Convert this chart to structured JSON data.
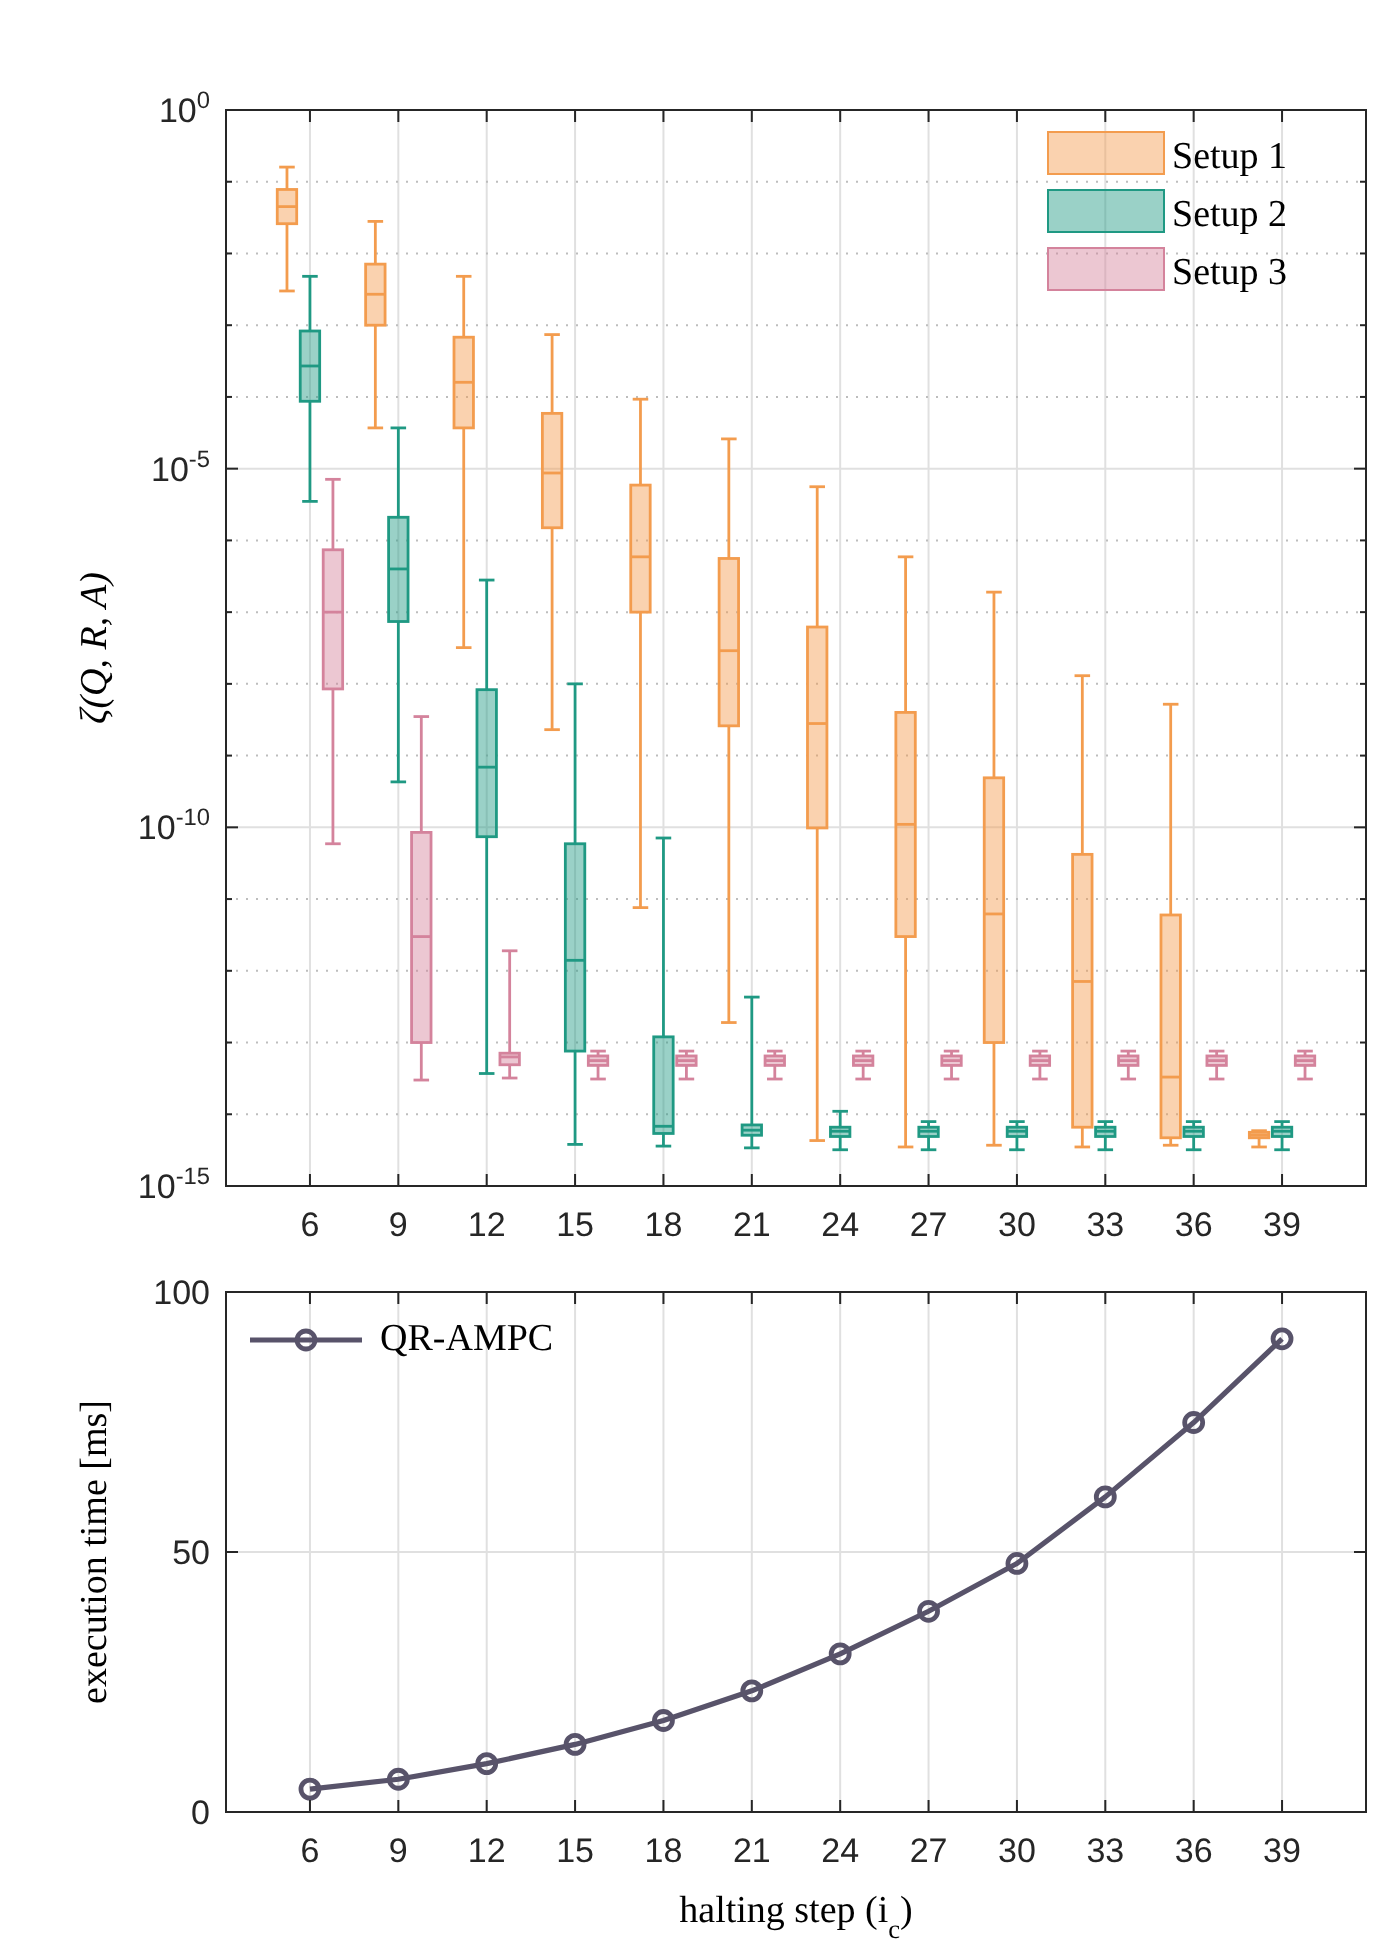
{
  "chart_data": [
    {
      "type": "box",
      "categories": [
        "6",
        "9",
        "12",
        "15",
        "18",
        "21",
        "24",
        "27",
        "30",
        "33",
        "36",
        "39"
      ],
      "ylabel": "ζ(Q, R, A)",
      "log": "y",
      "ylim": [
        1e-15,
        1
      ],
      "yticks": [
        {
          "value": 1,
          "label": "10$^{0}$"
        },
        {
          "value": 0.1,
          "label": null
        },
        {
          "value": 0.01,
          "label": null
        },
        {
          "value": 0.001,
          "label": null
        },
        {
          "value": 0.0001,
          "label": null
        },
        {
          "value": 1e-05,
          "label": "10$^{-5}$"
        },
        {
          "value": 1e-06,
          "label": null
        },
        {
          "value": 1e-07,
          "label": null
        },
        {
          "value": 1e-08,
          "label": null
        },
        {
          "value": 1e-09,
          "label": null
        },
        {
          "value": 1e-10,
          "label": "10$^{-10}$"
        },
        {
          "value": 1e-11,
          "label": null
        },
        {
          "value": 1e-12,
          "label": null
        },
        {
          "value": 1e-13,
          "label": null
        },
        {
          "value": 1e-14,
          "label": null
        },
        {
          "value": 1e-15,
          "label": "10$^{-15}$"
        }
      ],
      "grid": true,
      "legend": "top right",
      "series": [
        {
          "name": "Setup 1",
          "color": "#f39c4e",
          "boxes": [
            {
              "low": 0.003,
              "q1": 0.026,
              "median": 0.045,
              "q3": 0.078,
              "high": 0.16
            },
            {
              "low": 3.7e-05,
              "q1": 0.001,
              "median": 0.0027,
              "q3": 0.0071,
              "high": 0.028
            },
            {
              "low": 3.2e-08,
              "q1": 3.7e-05,
              "median": 0.00016,
              "q3": 0.00068,
              "high": 0.0048
            },
            {
              "low": 2.3e-09,
              "q1": 1.5e-06,
              "median": 8.7e-06,
              "q3": 5.9e-05,
              "high": 0.00074
            },
            {
              "low": 7.6e-12,
              "q1": 1e-07,
              "median": 5.9e-07,
              "q3": 5.9e-06,
              "high": 9.3e-05
            },
            {
              "low": 1.9e-13,
              "q1": 2.6e-09,
              "median": 2.9e-08,
              "q3": 5.6e-07,
              "high": 2.6e-05
            },
            {
              "low": 4.3e-15,
              "q1": 9.8e-11,
              "median": 2.8e-09,
              "q3": 6.2e-08,
              "high": 5.6e-06
            },
            {
              "low": 3.5e-15,
              "q1": 3e-12,
              "median": 1.1e-10,
              "q3": 4e-09,
              "high": 5.9e-07
            },
            {
              "low": 3.7e-15,
              "q1": 1e-13,
              "median": 6.2e-12,
              "q3": 4.9e-10,
              "high": 1.9e-07
            },
            {
              "low": 3.5e-15,
              "q1": 6.6e-15,
              "median": 7.1e-13,
              "q3": 4.2e-11,
              "high": 1.3e-08
            },
            {
              "low": 3.7e-15,
              "q1": 4.7e-15,
              "median": 3.3e-14,
              "q3": 6e-12,
              "high": 5.2e-09
            },
            {
              "low": 3.5e-15,
              "q1": 4.7e-15,
              "median": 5.1e-15,
              "q3": 5.6e-15,
              "high": 5.9e-15
            }
          ]
        },
        {
          "name": "Setup 2",
          "color": "#1f9983",
          "boxes": [
            {
              "low": 3.5e-06,
              "q1": 8.7e-05,
              "median": 0.00027,
              "q3": 0.00083,
              "high": 0.0048
            },
            {
              "low": 4.3e-10,
              "q1": 7.4e-08,
              "median": 4e-07,
              "q3": 2.1e-06,
              "high": 3.7e-05
            },
            {
              "low": 3.7e-14,
              "q1": 7.4e-11,
              "median": 6.9e-10,
              "q3": 8.3e-09,
              "high": 2.8e-07
            },
            {
              "low": 3.8e-15,
              "q1": 7.6e-14,
              "median": 1.4e-12,
              "q3": 5.9e-11,
              "high": 1e-08
            },
            {
              "low": 3.6e-15,
              "q1": 5.4e-15,
              "median": 6.8e-15,
              "q3": 1.2e-13,
              "high": 7.1e-11
            },
            {
              "low": 3.4e-15,
              "q1": 5.1e-15,
              "median": 6e-15,
              "q3": 7.1e-15,
              "high": 4.3e-13
            },
            {
              "low": 3.2e-15,
              "q1": 4.9e-15,
              "median": 5.8e-15,
              "q3": 6.6e-15,
              "high": 1.1e-14
            },
            {
              "low": 3.2e-15,
              "q1": 4.9e-15,
              "median": 5.8e-15,
              "q3": 6.6e-15,
              "high": 7.9e-15
            },
            {
              "low": 3.2e-15,
              "q1": 4.9e-15,
              "median": 5.8e-15,
              "q3": 6.6e-15,
              "high": 7.9e-15
            },
            {
              "low": 3.2e-15,
              "q1": 4.9e-15,
              "median": 5.8e-15,
              "q3": 6.6e-15,
              "high": 7.9e-15
            },
            {
              "low": 3.2e-15,
              "q1": 4.9e-15,
              "median": 5.8e-15,
              "q3": 6.6e-15,
              "high": 7.9e-15
            },
            {
              "low": 3.2e-15,
              "q1": 4.9e-15,
              "median": 5.8e-15,
              "q3": 6.6e-15,
              "high": 7.9e-15
            }
          ]
        },
        {
          "name": "Setup 3",
          "color": "#d4839c",
          "boxes": [
            {
              "low": 5.9e-11,
              "q1": 8.5e-09,
              "median": 1e-07,
              "q3": 7.4e-07,
              "high": 7.1e-06
            },
            {
              "low": 3e-14,
              "q1": 1e-13,
              "median": 3e-12,
              "q3": 8.5e-11,
              "high": 3.5e-09
            },
            {
              "low": 3.2e-14,
              "q1": 4.9e-14,
              "median": 6.3e-14,
              "q3": 7.1e-14,
              "high": 1.9e-12
            },
            {
              "low": 3.1e-14,
              "q1": 4.8e-14,
              "median": 5.6e-14,
              "q3": 6.5e-14,
              "high": 7.6e-14
            },
            {
              "low": 3.1e-14,
              "q1": 4.8e-14,
              "median": 5.6e-14,
              "q3": 6.5e-14,
              "high": 7.6e-14
            },
            {
              "low": 3.1e-14,
              "q1": 4.8e-14,
              "median": 5.6e-14,
              "q3": 6.5e-14,
              "high": 7.6e-14
            },
            {
              "low": 3.1e-14,
              "q1": 4.8e-14,
              "median": 5.6e-14,
              "q3": 6.5e-14,
              "high": 7.6e-14
            },
            {
              "low": 3.1e-14,
              "q1": 4.8e-14,
              "median": 5.6e-14,
              "q3": 6.5e-14,
              "high": 7.6e-14
            },
            {
              "low": 3.1e-14,
              "q1": 4.8e-14,
              "median": 5.6e-14,
              "q3": 6.5e-14,
              "high": 7.6e-14
            },
            {
              "low": 3.1e-14,
              "q1": 4.8e-14,
              "median": 5.6e-14,
              "q3": 6.5e-14,
              "high": 7.6e-14
            },
            {
              "low": 3.1e-14,
              "q1": 4.8e-14,
              "median": 5.6e-14,
              "q3": 6.5e-14,
              "high": 7.6e-14
            },
            {
              "low": 3.1e-14,
              "q1": 4.8e-14,
              "median": 5.6e-14,
              "q3": 6.5e-14,
              "high": 7.6e-14
            }
          ]
        }
      ]
    },
    {
      "type": "line",
      "categories": [
        "6",
        "9",
        "12",
        "15",
        "18",
        "21",
        "24",
        "27",
        "30",
        "33",
        "36",
        "39"
      ],
      "xlabel": "halting step (i$_{c}$)",
      "ylabel": "execution time [ms]",
      "ylim": [
        0,
        100
      ],
      "yticks": [
        0,
        50,
        100
      ],
      "grid": true,
      "legend": "top left",
      "marker": "circle",
      "line_style": "solid",
      "series": [
        {
          "name": "QR-AMPC",
          "color": "#58536a",
          "values": [
            4.4,
            6.3,
            9.3,
            13.0,
            17.6,
            23.3,
            30.4,
            38.6,
            47.8,
            60.6,
            74.9,
            91.0
          ]
        }
      ]
    }
  ]
}
